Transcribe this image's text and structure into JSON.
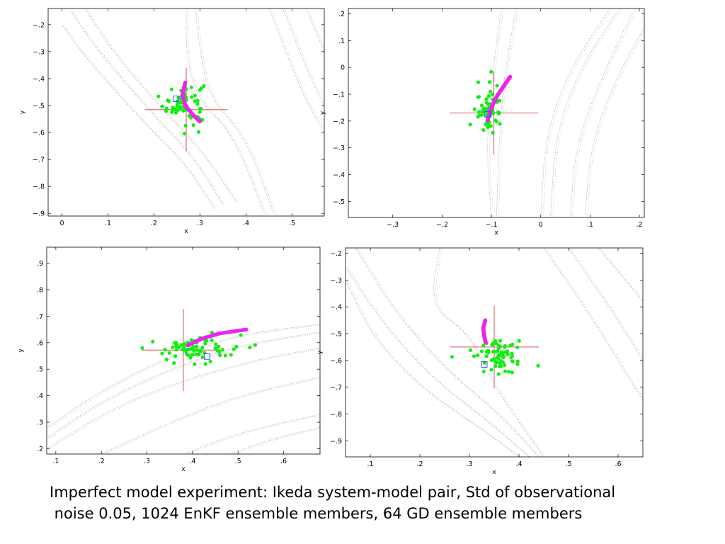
{
  "caption": {
    "line1": "Imperfect model experiment: Ikeda system-model pair, Std of observational",
    "line2": " noise 0.05, 1024 EnKF ensemble members, 64 GD ensemble members"
  },
  "colors": {
    "attractor": "#9a9a9a",
    "enkf": "#11ee11",
    "gd": "#ee22ee",
    "crosshair": "#e05050",
    "truth_marker": "#3355ff"
  },
  "chart_data": [
    {
      "type": "scatter",
      "position": "top-left",
      "xlabel": "x",
      "ylabel": "y",
      "xlim": [
        -0.03,
        0.57
      ],
      "ylim": [
        -0.91,
        -0.14
      ],
      "xticks": [
        0,
        0.1,
        0.2,
        0.3,
        0.4,
        0.5
      ],
      "yticks": [
        -0.2,
        -0.3,
        -0.4,
        -0.5,
        -0.6,
        -0.7,
        -0.8,
        -0.9
      ],
      "crosshair": {
        "x": 0.27,
        "y": -0.515,
        "half_width": 0.09,
        "half_height": 0.155
      },
      "truth_marker": {
        "x": 0.248,
        "y": -0.475
      },
      "enkf_cloud": {
        "center": [
          0.265,
          -0.49
        ],
        "spread": [
          0.022,
          0.04
        ],
        "count": 70
      },
      "gd_arc": [
        [
          0.268,
          -0.415
        ],
        [
          0.262,
          -0.46
        ],
        [
          0.268,
          -0.5
        ],
        [
          0.285,
          -0.535
        ],
        [
          0.3,
          -0.56
        ]
      ],
      "attractor_curves": [
        [
          [
            0.0,
            -0.2
          ],
          [
            0.05,
            -0.32
          ],
          [
            0.17,
            -0.55
          ],
          [
            0.27,
            -0.72
          ],
          [
            0.33,
            -0.88
          ]
        ],
        [
          [
            0.02,
            -0.15
          ],
          [
            0.07,
            -0.28
          ],
          [
            0.19,
            -0.52
          ],
          [
            0.29,
            -0.7
          ],
          [
            0.35,
            -0.87
          ]
        ],
        [
          [
            0.05,
            -0.14
          ],
          [
            0.11,
            -0.3
          ],
          [
            0.21,
            -0.5
          ],
          [
            0.3,
            -0.66
          ],
          [
            0.38,
            -0.86
          ]
        ],
        [
          [
            0.27,
            -0.14
          ],
          [
            0.27,
            -0.33
          ],
          [
            0.3,
            -0.49
          ],
          [
            0.37,
            -0.6
          ],
          [
            0.44,
            -0.9
          ]
        ],
        [
          [
            0.29,
            -0.14
          ],
          [
            0.3,
            -0.3
          ],
          [
            0.32,
            -0.47
          ],
          [
            0.4,
            -0.62
          ],
          [
            0.46,
            -0.9
          ]
        ],
        [
          [
            0.45,
            -0.14
          ],
          [
            0.52,
            -0.45
          ],
          [
            0.57,
            -0.6
          ]
        ],
        [
          [
            0.48,
            -0.14
          ],
          [
            0.54,
            -0.4
          ],
          [
            0.57,
            -0.5
          ]
        ],
        [
          [
            0.53,
            -0.14
          ],
          [
            0.57,
            -0.3
          ]
        ]
      ]
    },
    {
      "type": "scatter",
      "position": "top-right",
      "xlabel": "x",
      "ylabel": "y",
      "xlim": [
        -0.39,
        0.21
      ],
      "ylim": [
        -0.56,
        0.22
      ],
      "xticks": [
        -0.3,
        -0.2,
        -0.1,
        0,
        0.1,
        0.2
      ],
      "yticks": [
        0.2,
        0.1,
        0,
        -0.1,
        -0.2,
        -0.3,
        -0.4,
        -0.5
      ],
      "crosshair": {
        "x": -0.095,
        "y": -0.17,
        "half_width": 0.09,
        "half_height": 0.155
      },
      "truth_marker": {
        "x": -0.108,
        "y": -0.175
      },
      "enkf_cloud": {
        "center": [
          -0.105,
          -0.155
        ],
        "spread": [
          0.013,
          0.045
        ],
        "count": 70
      },
      "gd_arc": [
        [
          -0.062,
          -0.035
        ],
        [
          -0.075,
          -0.07
        ],
        [
          -0.088,
          -0.105
        ],
        [
          -0.1,
          -0.15
        ],
        [
          -0.108,
          -0.2
        ]
      ],
      "attractor_curves": [
        [
          [
            -0.08,
            0.22
          ],
          [
            -0.1,
            -0.05
          ],
          [
            -0.11,
            -0.3
          ],
          [
            -0.1,
            -0.56
          ]
        ],
        [
          [
            -0.05,
            0.22
          ],
          [
            -0.08,
            -0.1
          ],
          [
            -0.09,
            -0.56
          ]
        ],
        [
          [
            0.0,
            -0.56
          ],
          [
            0.01,
            -0.25
          ],
          [
            0.06,
            0.0
          ],
          [
            0.14,
            0.22
          ]
        ],
        [
          [
            0.02,
            -0.56
          ],
          [
            0.03,
            -0.25
          ],
          [
            0.08,
            0.0
          ],
          [
            0.16,
            0.22
          ]
        ],
        [
          [
            0.06,
            -0.56
          ],
          [
            0.07,
            -0.3
          ],
          [
            0.12,
            -0.05
          ],
          [
            0.19,
            0.22
          ]
        ],
        [
          [
            0.09,
            -0.56
          ],
          [
            0.1,
            -0.3
          ],
          [
            0.15,
            -0.05
          ],
          [
            0.21,
            0.15
          ]
        ]
      ]
    },
    {
      "type": "scatter",
      "position": "bottom-left",
      "xlabel": "x",
      "ylabel": "y",
      "xlim": [
        0.08,
        0.68
      ],
      "ylim": [
        0.18,
        0.96
      ],
      "xticks": [
        0.1,
        0.2,
        0.3,
        0.4,
        0.5,
        0.6
      ],
      "yticks": [
        0.9,
        0.8,
        0.7,
        0.6,
        0.5,
        0.4,
        0.3,
        0.2
      ],
      "crosshair": {
        "x": 0.38,
        "y": 0.572,
        "half_width": 0.09,
        "half_height": 0.155
      },
      "truth_marker": {
        "x": 0.432,
        "y": 0.548
      },
      "enkf_cloud": {
        "center": [
          0.4,
          0.575
        ],
        "spread": [
          0.05,
          0.025
        ],
        "count": 70
      },
      "gd_arc": [
        [
          0.39,
          0.59
        ],
        [
          0.42,
          0.615
        ],
        [
          0.46,
          0.635
        ],
        [
          0.52,
          0.65
        ]
      ],
      "attractor_curves": [
        [
          [
            0.08,
            0.28
          ],
          [
            0.2,
            0.42
          ],
          [
            0.35,
            0.55
          ],
          [
            0.5,
            0.63
          ],
          [
            0.68,
            0.67
          ]
        ],
        [
          [
            0.08,
            0.24
          ],
          [
            0.2,
            0.38
          ],
          [
            0.35,
            0.5
          ],
          [
            0.5,
            0.59
          ],
          [
            0.68,
            0.64
          ]
        ],
        [
          [
            0.08,
            0.2
          ],
          [
            0.22,
            0.35
          ],
          [
            0.38,
            0.46
          ],
          [
            0.55,
            0.54
          ],
          [
            0.68,
            0.58
          ]
        ],
        [
          [
            0.2,
            0.18
          ],
          [
            0.35,
            0.3
          ],
          [
            0.5,
            0.4
          ],
          [
            0.68,
            0.47
          ]
        ],
        [
          [
            0.38,
            0.18
          ],
          [
            0.5,
            0.26
          ],
          [
            0.68,
            0.33
          ]
        ],
        [
          [
            0.48,
            0.18
          ],
          [
            0.58,
            0.24
          ],
          [
            0.68,
            0.28
          ]
        ]
      ]
    },
    {
      "type": "scatter",
      "position": "bottom-right",
      "xlabel": "x",
      "ylabel": "y",
      "xlim": [
        0.05,
        0.65
      ],
      "ylim": [
        -0.96,
        -0.18
      ],
      "xticks": [
        0.1,
        0.2,
        0.3,
        0.4,
        0.5,
        0.6
      ],
      "yticks": [
        -0.2,
        -0.3,
        -0.4,
        -0.5,
        -0.6,
        -0.7,
        -0.8,
        -0.9
      ],
      "crosshair": {
        "x": 0.35,
        "y": -0.55,
        "half_width": 0.09,
        "half_height": 0.155
      },
      "truth_marker": {
        "x": 0.33,
        "y": -0.615
      },
      "enkf_cloud": {
        "center": [
          0.36,
          -0.585
        ],
        "spread": [
          0.022,
          0.035
        ],
        "count": 70
      },
      "gd_arc": [
        [
          0.332,
          -0.45
        ],
        [
          0.328,
          -0.48
        ],
        [
          0.33,
          -0.51
        ],
        [
          0.333,
          -0.535
        ]
      ],
      "attractor_curves": [
        [
          [
            0.05,
            -0.3
          ],
          [
            0.1,
            -0.5
          ],
          [
            0.2,
            -0.7
          ],
          [
            0.32,
            -0.85
          ],
          [
            0.4,
            -0.96
          ]
        ],
        [
          [
            0.05,
            -0.25
          ],
          [
            0.12,
            -0.45
          ],
          [
            0.22,
            -0.66
          ],
          [
            0.34,
            -0.83
          ],
          [
            0.42,
            -0.96
          ]
        ],
        [
          [
            0.07,
            -0.18
          ],
          [
            0.15,
            -0.42
          ],
          [
            0.25,
            -0.63
          ],
          [
            0.36,
            -0.8
          ],
          [
            0.44,
            -0.96
          ]
        ],
        [
          [
            0.24,
            -0.18
          ],
          [
            0.22,
            -0.4
          ],
          [
            0.3,
            -0.5
          ],
          [
            0.35,
            -0.7
          ],
          [
            0.45,
            -0.96
          ]
        ],
        [
          [
            0.45,
            -0.18
          ],
          [
            0.55,
            -0.45
          ],
          [
            0.65,
            -0.75
          ]
        ],
        [
          [
            0.5,
            -0.18
          ],
          [
            0.6,
            -0.45
          ],
          [
            0.65,
            -0.6
          ]
        ],
        [
          [
            0.56,
            -0.18
          ],
          [
            0.65,
            -0.38
          ]
        ]
      ]
    }
  ]
}
